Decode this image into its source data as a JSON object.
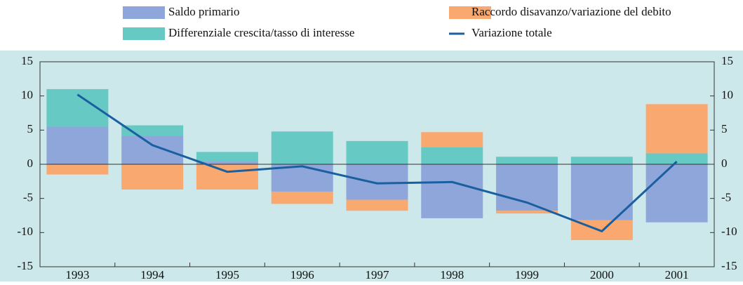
{
  "chart_data": {
    "type": "bar-line",
    "categories": [
      "1993",
      "1994",
      "1995",
      "1996",
      "1997",
      "1998",
      "1999",
      "2000",
      "2001"
    ],
    "series": [
      {
        "name": "Saldo primario",
        "color": "#8fa6da",
        "kind": "bar",
        "values": [
          5.5,
          4.2,
          0.4,
          -4.0,
          -5.2,
          -7.9,
          -6.8,
          -8.2,
          -8.5
        ]
      },
      {
        "name": "Differenziale crescita/tasso di interesse",
        "color": "#66c9c4",
        "kind": "bar",
        "values": [
          5.5,
          1.5,
          1.4,
          4.8,
          3.4,
          2.5,
          1.1,
          1.1,
          1.6
        ]
      },
      {
        "name": "Raccordo disavanzo/variazione del debito",
        "color": "#f9a870",
        "kind": "bar",
        "values": [
          -1.5,
          -3.7,
          -3.7,
          -1.8,
          -1.6,
          2.2,
          -0.4,
          -2.9,
          7.2
        ]
      },
      {
        "name": "Variazione totale",
        "color": "#1a5fa0",
        "kind": "line",
        "values": [
          10.2,
          2.8,
          -1.1,
          -0.3,
          -2.8,
          -2.6,
          -5.6,
          -9.8,
          0.4
        ]
      }
    ],
    "ylim": [
      -15,
      15
    ],
    "yticks": [
      -15,
      -10,
      -5,
      0,
      5,
      10,
      15
    ]
  }
}
